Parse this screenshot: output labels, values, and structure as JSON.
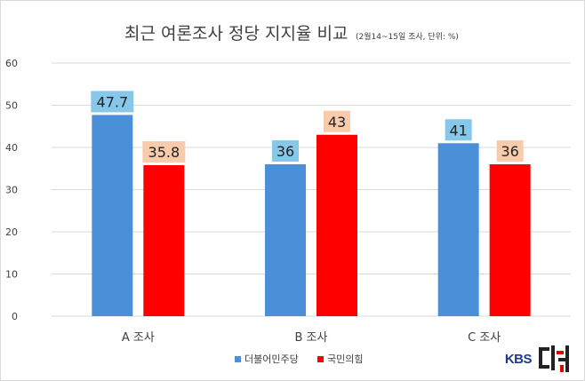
{
  "chart_data": {
    "type": "bar",
    "title": "최근 여론조사 정당 지지율  비교",
    "subtitle": "(2월14~15일 조사, 단위: %)",
    "categories": [
      "A 조사",
      "B 조사",
      "C 조사"
    ],
    "series": [
      {
        "name": "더불어민주당",
        "values": [
          47.7,
          36,
          41
        ],
        "color": "#4a90d9",
        "label_bg": "#87c8ea"
      },
      {
        "name": "국민의힘",
        "values": [
          35.8,
          43,
          36
        ],
        "color": "#ff0000",
        "label_bg": "#f7cbac"
      }
    ],
    "ylim": [
      0,
      60
    ],
    "yticks": [
      0,
      10,
      20,
      30,
      40,
      50,
      60
    ],
    "grid": true,
    "legend": "bottom"
  },
  "logo": {
    "text": "KBS",
    "mark_text": "더하다"
  }
}
